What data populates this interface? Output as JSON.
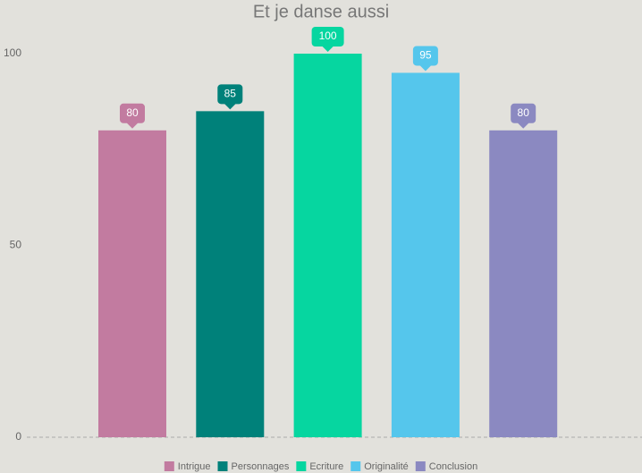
{
  "chart_data": {
    "type": "bar",
    "title": "Et je danse aussi",
    "series": [
      {
        "name": "Intrigue",
        "color": "#c27ba0",
        "values": [
          80
        ]
      },
      {
        "name": "Personnages",
        "color": "#00817a",
        "values": [
          85
        ]
      },
      {
        "name": "Ecriture",
        "color": "#06d6a0",
        "values": [
          100
        ]
      },
      {
        "name": "Originalité",
        "color": "#55c6ec",
        "values": [
          95
        ]
      },
      {
        "name": "Conclusion",
        "color": "#8b89c1",
        "values": [
          80
        ]
      }
    ],
    "ylim": [
      0,
      100
    ],
    "yticks": [
      0,
      50,
      100
    ],
    "legend": "bottom"
  }
}
